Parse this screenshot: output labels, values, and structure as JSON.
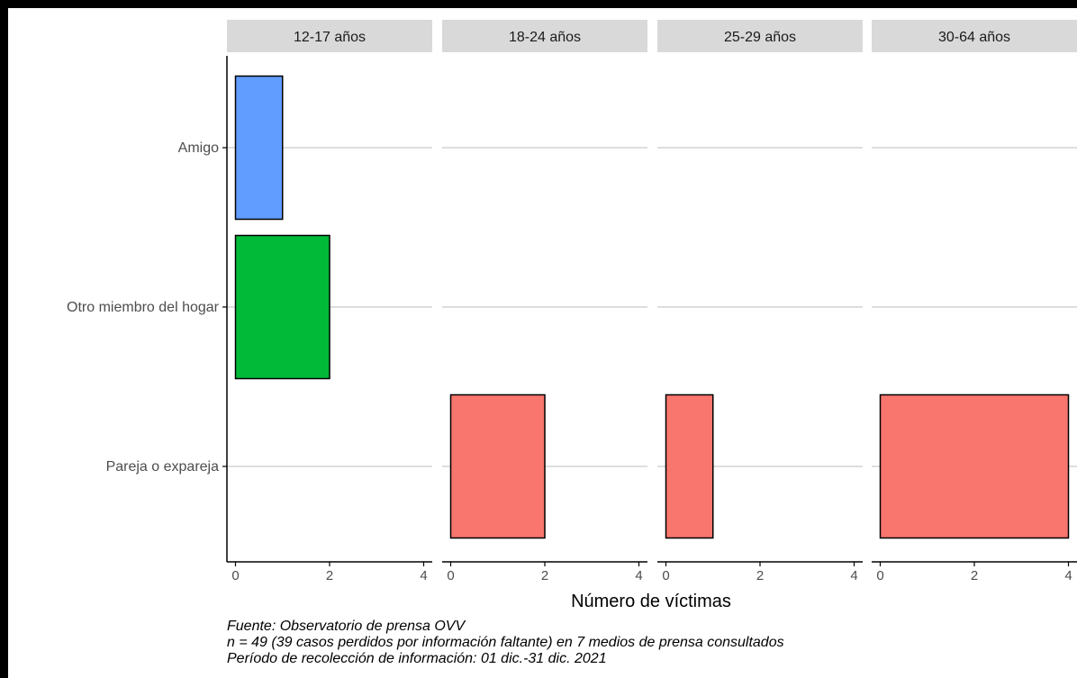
{
  "chart_data": {
    "type": "bar",
    "orientation": "horizontal",
    "facets": [
      "12-17 años",
      "18-24 años",
      "25-29 años",
      "30-64 años"
    ],
    "categories": [
      "Amigo",
      "Otro miembro del hogar",
      "Pareja o expareja"
    ],
    "series": [
      {
        "facet": "12-17 años",
        "values": [
          1,
          2,
          0
        ]
      },
      {
        "facet": "18-24 años",
        "values": [
          0,
          0,
          2
        ]
      },
      {
        "facet": "25-29 años",
        "values": [
          0,
          0,
          1
        ]
      },
      {
        "facet": "30-64 años",
        "values": [
          0,
          0,
          4
        ]
      }
    ],
    "category_colors": [
      "#619CFF",
      "#00BA38",
      "#F8766D"
    ],
    "xlabel": "Número de víctimas",
    "xlim": [
      0,
      4
    ],
    "xticks": [
      0,
      2,
      4
    ],
    "grid": "horizontal major lines",
    "legend": "none"
  },
  "captions": [
    "Fuente: Observatorio de prensa OVV",
    "n = 49 (39 casos perdidos por información faltante) en 7 medios de prensa consultados",
    "Período de recolección de información: 01 dic.-31 dic. 2021"
  ]
}
